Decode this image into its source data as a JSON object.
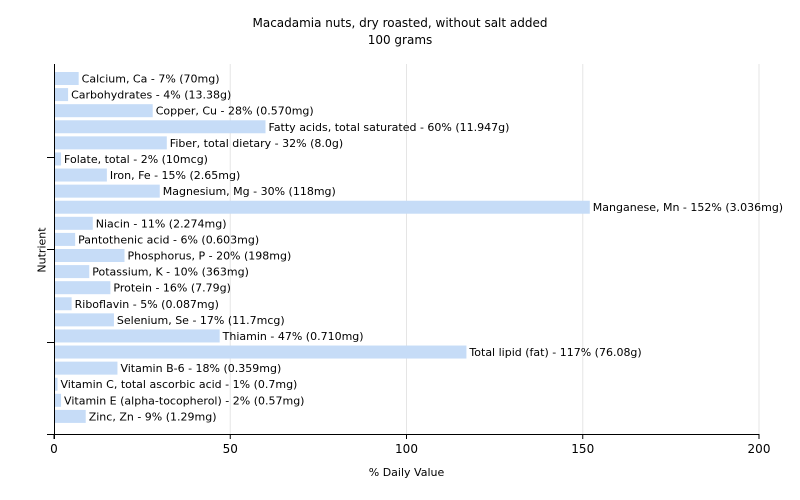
{
  "chart_data": {
    "type": "bar",
    "orientation": "horizontal",
    "title": "Macadamia nuts, dry roasted, without salt added",
    "subtitle": "100 grams",
    "xlabel": "% Daily Value",
    "ylabel": "Nutrient",
    "xlim": [
      0,
      200
    ],
    "xticks": [
      "0",
      "50",
      "100",
      "150",
      "200"
    ],
    "grid": true,
    "bar_color": "#c6dcf7",
    "categories": [
      "Calcium, Ca",
      "Carbohydrates",
      "Copper, Cu",
      "Fatty acids, total saturated",
      "Fiber, total dietary",
      "Folate, total",
      "Iron, Fe",
      "Magnesium, Mg",
      "Manganese, Mn",
      "Niacin",
      "Pantothenic acid",
      "Phosphorus, P",
      "Potassium, K",
      "Protein",
      "Riboflavin",
      "Selenium, Se",
      "Thiamin",
      "Total lipid (fat)",
      "Vitamin B-6",
      "Vitamin C, total ascorbic acid",
      "Vitamin E (alpha-tocopherol)",
      "Zinc, Zn"
    ],
    "values": [
      7,
      4,
      28,
      60,
      32,
      2,
      15,
      30,
      152,
      11,
      6,
      20,
      10,
      16,
      5,
      17,
      47,
      117,
      18,
      1,
      2,
      9
    ],
    "labels": [
      "Calcium, Ca - 7% (70mg)",
      "Carbohydrates - 4% (13.38g)",
      "Copper, Cu - 28% (0.570mg)",
      "Fatty acids, total saturated - 60% (11.947g)",
      "Fiber, total dietary - 32% (8.0g)",
      "Folate, total - 2% (10mcg)",
      "Iron, Fe - 15% (2.65mg)",
      "Magnesium, Mg - 30% (118mg)",
      "Manganese, Mn - 152% (3.036mg)",
      "Niacin - 11% (2.274mg)",
      "Pantothenic acid - 6% (0.603mg)",
      "Phosphorus, P - 20% (198mg)",
      "Potassium, K - 10% (363mg)",
      "Protein - 16% (7.79g)",
      "Riboflavin - 5% (0.087mg)",
      "Selenium, Se - 17% (11.7mcg)",
      "Thiamin - 47% (0.710mg)",
      "Total lipid (fat) - 117% (76.08g)",
      "Vitamin B-6 - 18% (0.359mg)",
      "Vitamin C, total ascorbic acid - 1% (0.7mg)",
      "Vitamin E (alpha-tocopherol) - 2% (0.57mg)",
      "Zinc, Zn - 9% (1.29mg)"
    ]
  }
}
